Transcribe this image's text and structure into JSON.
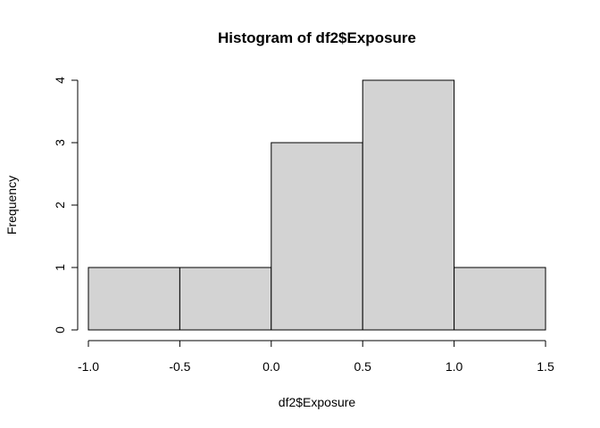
{
  "chart_data": {
    "type": "bar",
    "title": "Histogram of df2$Exposure",
    "xlabel": "df2$Exposure",
    "ylabel": "Frequency",
    "bins": [
      {
        "from": -1.0,
        "to": -0.5,
        "count": 1
      },
      {
        "from": -0.5,
        "to": 0.0,
        "count": 1
      },
      {
        "from": 0.0,
        "to": 0.5,
        "count": 3
      },
      {
        "from": 0.5,
        "to": 1.0,
        "count": 4
      },
      {
        "from": 1.0,
        "to": 1.5,
        "count": 1
      }
    ],
    "xlim": [
      -1.0,
      1.5
    ],
    "ylim": [
      0,
      4
    ],
    "x_ticks": [
      "-1.0",
      "-0.5",
      "0.0",
      "0.5",
      "1.0",
      "1.5"
    ],
    "y_ticks": [
      "0",
      "1",
      "2",
      "3",
      "4"
    ],
    "bar_color": "#d3d3d3",
    "grid": false,
    "legend": "none"
  }
}
